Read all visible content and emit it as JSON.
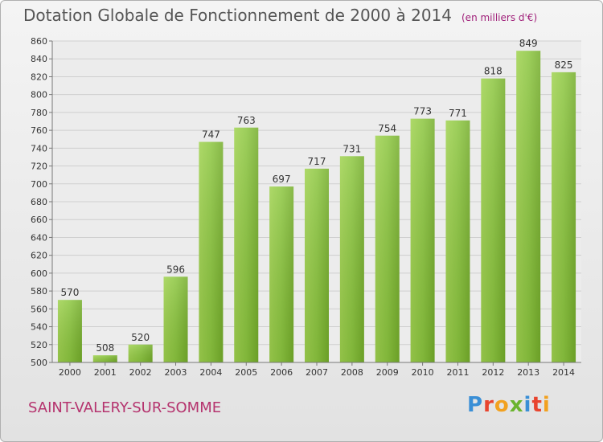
{
  "chart_data": {
    "type": "bar",
    "title": "Dotation Globale de Fonctionnement de 2000 à 2014",
    "subtitle": "(en milliers d'€)",
    "categories": [
      "2000",
      "2001",
      "2002",
      "2003",
      "2004",
      "2005",
      "2006",
      "2007",
      "2008",
      "2009",
      "2010",
      "2011",
      "2012",
      "2013",
      "2014"
    ],
    "values": [
      570,
      508,
      520,
      596,
      747,
      763,
      697,
      717,
      731,
      754,
      773,
      771,
      818,
      849,
      825
    ],
    "ylim": [
      500,
      860
    ],
    "yticks": [
      500,
      520,
      540,
      560,
      580,
      600,
      620,
      640,
      660,
      680,
      700,
      720,
      740,
      760,
      780,
      800,
      820,
      840,
      860
    ],
    "grid": true,
    "xlabel": "",
    "ylabel": "",
    "bar_color": "#8cc63f",
    "bar_color_dark": "#6aa521"
  },
  "footer": {
    "commune": "SAINT-VALERY-SUR-SOMME",
    "logo": [
      "P",
      "r",
      "o",
      "x",
      "i",
      "t",
      "i"
    ],
    "logo_colors": [
      "#3a8fd6",
      "#e8442e",
      "#f2a11f",
      "#6ab42d",
      "#3a8fd6",
      "#e8442e",
      "#f2a11f"
    ]
  }
}
